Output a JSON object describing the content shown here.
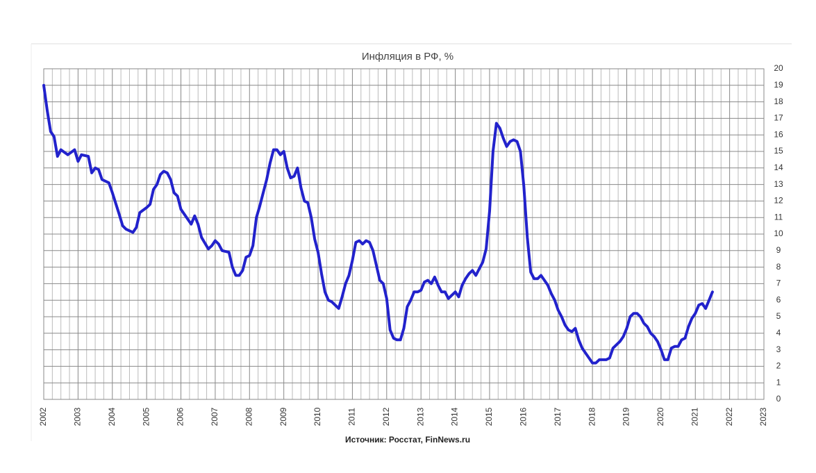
{
  "chart_data": {
    "type": "line",
    "title": "Инфляция в РФ, %",
    "source": "Источник: Росстат, FinNews.ru",
    "grid": true,
    "xlim": [
      2002,
      2023
    ],
    "xticks": [
      2002,
      2003,
      2004,
      2005,
      2006,
      2007,
      2008,
      2009,
      2010,
      2011,
      2012,
      2013,
      2014,
      2015,
      2016,
      2017,
      2018,
      2019,
      2020,
      2021,
      2022,
      2023
    ],
    "ylim": [
      0,
      20
    ],
    "yticks": [
      0,
      1,
      2,
      3,
      4,
      5,
      6,
      7,
      8,
      9,
      10,
      11,
      12,
      13,
      14,
      15,
      16,
      17,
      18,
      19,
      20
    ],
    "series": [
      {
        "name": "Инфляция",
        "color": "#2222cc",
        "x": [
          2002.0,
          2002.1,
          2002.2,
          2002.3,
          2002.4,
          2002.5,
          2002.7,
          2002.9,
          2003.0,
          2003.1,
          2003.3,
          2003.4,
          2003.5,
          2003.6,
          2003.7,
          2003.9,
          2004.0,
          2004.2,
          2004.3,
          2004.4,
          2004.6,
          2004.7,
          2004.8,
          2005.0,
          2005.1,
          2005.2,
          2005.3,
          2005.4,
          2005.5,
          2005.6,
          2005.7,
          2005.8,
          2005.9,
          2006.0,
          2006.2,
          2006.3,
          2006.4,
          2006.5,
          2006.6,
          2006.8,
          2006.9,
          2007.0,
          2007.1,
          2007.2,
          2007.4,
          2007.5,
          2007.6,
          2007.7,
          2007.8,
          2007.9,
          2008.0,
          2008.1,
          2008.2,
          2008.3,
          2008.4,
          2008.5,
          2008.6,
          2008.7,
          2008.8,
          2008.9,
          2009.0,
          2009.1,
          2009.2,
          2009.3,
          2009.4,
          2009.5,
          2009.6,
          2009.7,
          2009.8,
          2009.9,
          2010.0,
          2010.1,
          2010.2,
          2010.3,
          2010.4,
          2010.5,
          2010.6,
          2010.7,
          2010.8,
          2010.9,
          2011.0,
          2011.1,
          2011.2,
          2011.3,
          2011.4,
          2011.5,
          2011.6,
          2011.7,
          2011.8,
          2011.9,
          2012.0,
          2012.1,
          2012.2,
          2012.3,
          2012.4,
          2012.5,
          2012.6,
          2012.7,
          2012.8,
          2012.9,
          2013.0,
          2013.1,
          2013.2,
          2013.3,
          2013.4,
          2013.5,
          2013.6,
          2013.7,
          2013.8,
          2013.9,
          2014.0,
          2014.1,
          2014.2,
          2014.3,
          2014.4,
          2014.5,
          2014.6,
          2014.7,
          2014.8,
          2014.9,
          2015.0,
          2015.1,
          2015.2,
          2015.3,
          2015.4,
          2015.5,
          2015.6,
          2015.7,
          2015.8,
          2015.9,
          2016.0,
          2016.1,
          2016.2,
          2016.3,
          2016.4,
          2016.5,
          2016.6,
          2016.7,
          2016.8,
          2016.9,
          2017.0,
          2017.1,
          2017.2,
          2017.3,
          2017.4,
          2017.5,
          2017.6,
          2017.7,
          2017.8,
          2017.9,
          2018.0,
          2018.1,
          2018.2,
          2018.3,
          2018.4,
          2018.5,
          2018.6,
          2018.8,
          2018.9,
          2019.0,
          2019.1,
          2019.2,
          2019.3,
          2019.4,
          2019.5,
          2019.6,
          2019.7,
          2019.8,
          2019.9,
          2020.0,
          2020.1,
          2020.2,
          2020.3,
          2020.4,
          2020.5,
          2020.6,
          2020.7,
          2020.8,
          2020.9,
          2021.0,
          2021.1,
          2021.2,
          2021.3,
          2021.4,
          2021.5
        ],
        "values": [
          19,
          17.5,
          16.2,
          15.9,
          14.7,
          15.1,
          14.8,
          15.1,
          14.4,
          14.8,
          14.7,
          13.7,
          14.0,
          13.9,
          13.3,
          13.1,
          12.5,
          11.2,
          10.5,
          10.3,
          10.1,
          10.4,
          11.3,
          11.6,
          11.8,
          12.7,
          13.0,
          13.6,
          13.8,
          13.7,
          13.3,
          12.5,
          12.3,
          11.5,
          10.9,
          10.6,
          11.1,
          10.6,
          9.8,
          9.1,
          9.3,
          9.6,
          9.4,
          9.0,
          8.9,
          8.0,
          7.5,
          7.5,
          7.8,
          8.6,
          8.7,
          9.3,
          11.0,
          11.7,
          12.5,
          13.3,
          14.3,
          15.1,
          15.1,
          14.8,
          15.0,
          14.0,
          13.4,
          13.5,
          14.0,
          12.8,
          12.0,
          11.9,
          11.0,
          9.7,
          8.9,
          7.6,
          6.5,
          6.0,
          5.9,
          5.7,
          5.5,
          6.2,
          7.0,
          7.5,
          8.4,
          9.5,
          9.6,
          9.4,
          9.6,
          9.5,
          9.0,
          8.1,
          7.2,
          7.0,
          6.1,
          4.2,
          3.7,
          3.6,
          3.6,
          4.3,
          5.6,
          6.0,
          6.5,
          6.5,
          6.6,
          7.1,
          7.2,
          7.0,
          7.4,
          6.9,
          6.5,
          6.5,
          6.1,
          6.3,
          6.5,
          6.2,
          6.9,
          7.3,
          7.6,
          7.8,
          7.5,
          7.9,
          8.3,
          9.1,
          11.4,
          15.0,
          16.7,
          16.4,
          15.8,
          15.3,
          15.6,
          15.7,
          15.6,
          15.0,
          12.9,
          9.8,
          7.7,
          7.3,
          7.3,
          7.5,
          7.2,
          6.9,
          6.4,
          6.0,
          5.4,
          5.0,
          4.5,
          4.2,
          4.1,
          4.3,
          3.6,
          3.1,
          2.8,
          2.5,
          2.2,
          2.2,
          2.4,
          2.4,
          2.4,
          2.5,
          3.1,
          3.5,
          3.8,
          4.3,
          5.0,
          5.2,
          5.2,
          5.0,
          4.6,
          4.4,
          4.0,
          3.8,
          3.5,
          3.0,
          2.4,
          2.4,
          3.1,
          3.2,
          3.2,
          3.6,
          3.7,
          4.4,
          4.9,
          5.2,
          5.7,
          5.8,
          5.5,
          6.0,
          6.5
        ]
      }
    ]
  }
}
